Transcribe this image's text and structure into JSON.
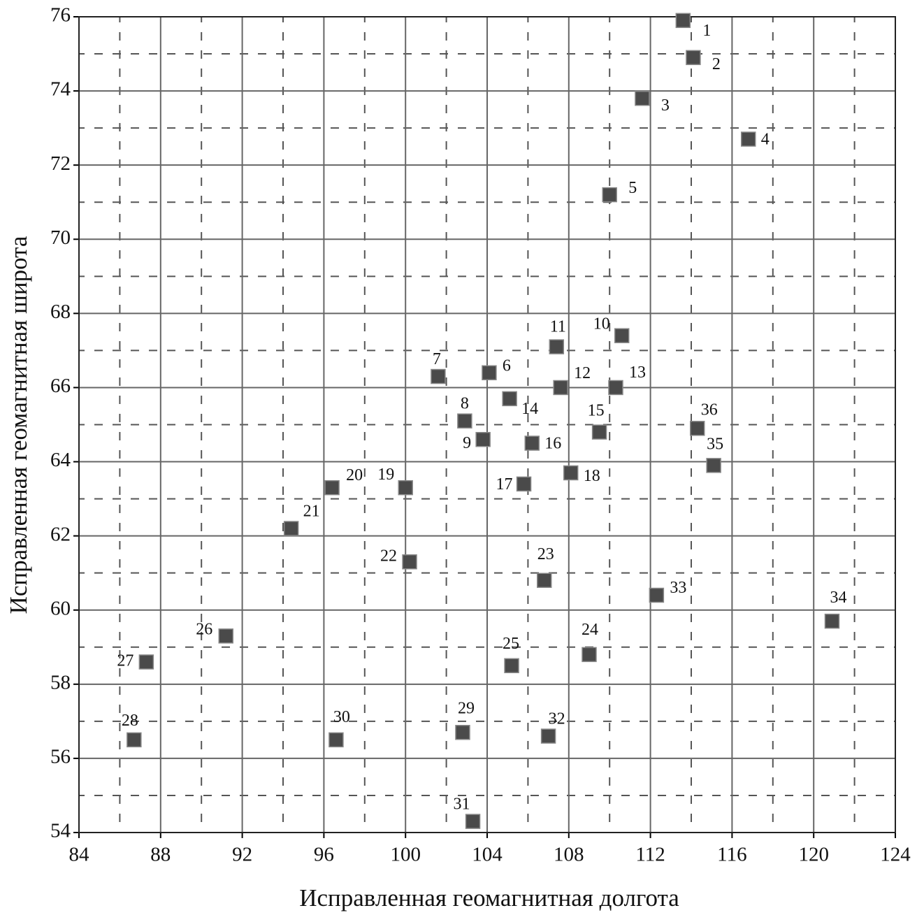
{
  "chart_data": {
    "type": "scatter",
    "xlabel": "Исправленная геомагнитная долгота",
    "ylabel": "Исправленная геомагнитная широта",
    "labels": [
      "1",
      "2",
      "3",
      "4",
      "5",
      "6",
      "7",
      "8",
      "9",
      "10",
      "11",
      "12",
      "13",
      "14",
      "15",
      "16",
      "17",
      "18",
      "19",
      "20",
      "21",
      "22",
      "23",
      "24",
      "25",
      "26",
      "27",
      "28",
      "29",
      "30",
      "31",
      "32",
      "33",
      "34",
      "35",
      "36"
    ],
    "x": [
      113.6,
      114.1,
      111.6,
      116.8,
      110.0,
      104.1,
      101.6,
      102.9,
      103.8,
      110.6,
      107.4,
      107.6,
      110.3,
      105.1,
      109.5,
      106.2,
      105.8,
      108.1,
      100.0,
      96.4,
      94.4,
      100.2,
      106.8,
      109.0,
      105.2,
      91.2,
      87.3,
      86.7,
      102.8,
      96.6,
      103.3,
      107.0,
      112.3,
      120.9,
      115.1,
      114.3
    ],
    "values": [
      75.9,
      74.9,
      73.8,
      72.7,
      71.2,
      66.4,
      66.3,
      65.1,
      64.6,
      67.4,
      67.1,
      66.0,
      66.0,
      65.7,
      64.8,
      64.5,
      63.4,
      63.7,
      63.3,
      63.3,
      62.2,
      61.3,
      60.8,
      58.8,
      58.5,
      59.3,
      58.6,
      56.5,
      56.7,
      56.5,
      54.3,
      56.6,
      60.4,
      59.7,
      63.9,
      64.9
    ],
    "color": "#4a4a4a",
    "xlim": [
      84,
      124
    ],
    "xticks": [
      84,
      88,
      92,
      96,
      100,
      104,
      108,
      112,
      116,
      120,
      124
    ],
    "ylim": [
      54,
      76
    ],
    "yticks": [
      54,
      56,
      58,
      60,
      62,
      64,
      66,
      68,
      70,
      72,
      74,
      76
    ],
    "grid": true
  }
}
